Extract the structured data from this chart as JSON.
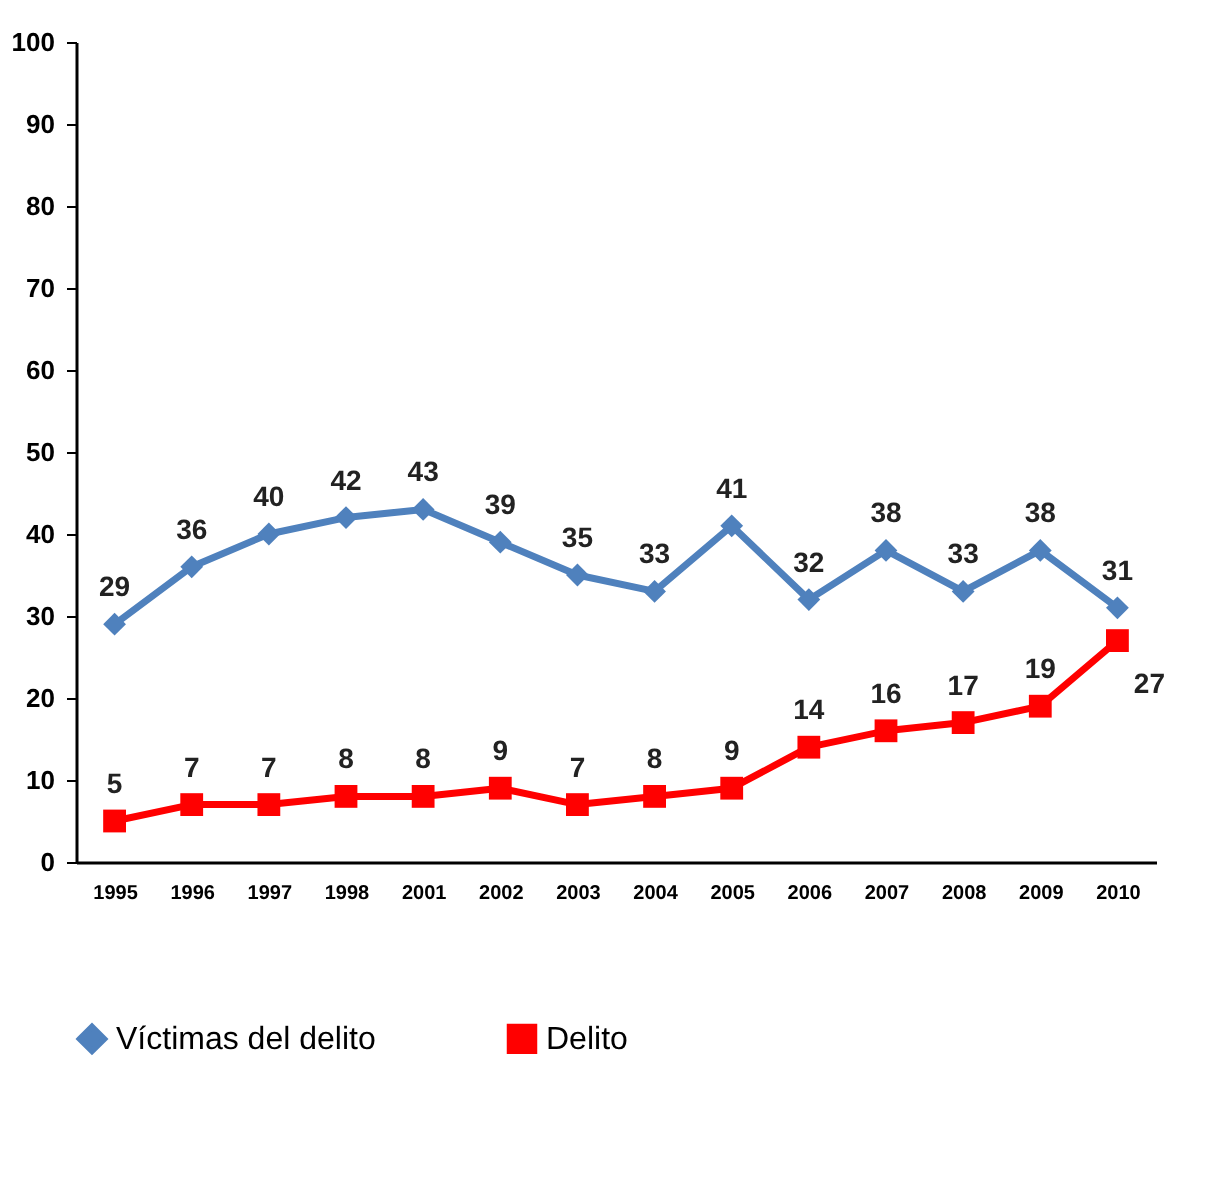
{
  "chart_data": {
    "type": "line",
    "categories": [
      "1995",
      "1996",
      "1997",
      "1998",
      "2001",
      "2002",
      "2003",
      "2004",
      "2005",
      "2006",
      "2007",
      "2008",
      "2009",
      "2010"
    ],
    "series": [
      {
        "name": "Víctimas del delito",
        "color": "#4f81bd",
        "marker": "diamond",
        "values": [
          29,
          36,
          40,
          42,
          43,
          39,
          35,
          33,
          41,
          32,
          38,
          33,
          38,
          31
        ]
      },
      {
        "name": "Delito",
        "color": "#ff0000",
        "marker": "square",
        "values": [
          5,
          7,
          7,
          8,
          8,
          9,
          7,
          8,
          9,
          14,
          16,
          17,
          19,
          27
        ]
      }
    ],
    "ylim": [
      0,
      100
    ],
    "yticks": [
      0,
      10,
      20,
      30,
      40,
      50,
      60,
      70,
      80,
      90,
      100
    ],
    "grid": false,
    "legend": "bottom",
    "data_labels": true,
    "line_style": "solid"
  }
}
